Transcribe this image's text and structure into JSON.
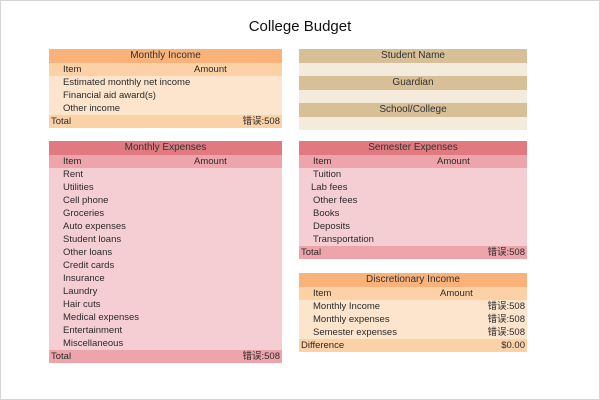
{
  "title": "College Budget",
  "monthly_income": {
    "header": "Monthly Income",
    "col_item": "Item",
    "col_amount": "Amount",
    "items": [
      "Estimated monthly net income",
      "Financial aid award(s)",
      "Other income"
    ],
    "total_label": "Total",
    "total_value": "错误:508",
    "color": "#f9b37a"
  },
  "student_info": {
    "student_name": "Student Name",
    "guardian": "Guardian",
    "school": "School/College",
    "color": "#d7bf97"
  },
  "monthly_expenses": {
    "header": "Monthly Expenses",
    "col_item": "Item",
    "col_amount": "Amount",
    "items": [
      "Rent",
      "Utilities",
      "Cell phone",
      "Groceries",
      "Auto expenses",
      "Student loans",
      "Other loans",
      "Credit cards",
      "Insurance",
      "Laundry",
      "Hair cuts",
      "Medical expenses",
      "Entertainment",
      "Miscellaneous"
    ],
    "total_label": "Total",
    "total_value": "错误:508",
    "color": "#e07a80"
  },
  "semester_expenses": {
    "header": "Semester Expenses",
    "col_item": "Item",
    "col_amount": "Amount",
    "items": [
      "Tuition",
      "Lab fees",
      "Other fees",
      "Books",
      "Deposits",
      "Transportation"
    ],
    "total_label": "Total",
    "total_value": "错误:508",
    "color": "#e07a80"
  },
  "discretionary_income": {
    "header": "Discretionary Income",
    "col_item": "Item",
    "col_amount": "Amount",
    "rows": [
      {
        "label": "Monthly Income",
        "value": "错误:508"
      },
      {
        "label": "Monthly expenses",
        "value": "错误:508"
      },
      {
        "label": "Semester expenses",
        "value": "错误:508"
      }
    ],
    "difference_label": "Difference",
    "difference_value": "$0.00",
    "color": "#f9b37a"
  }
}
